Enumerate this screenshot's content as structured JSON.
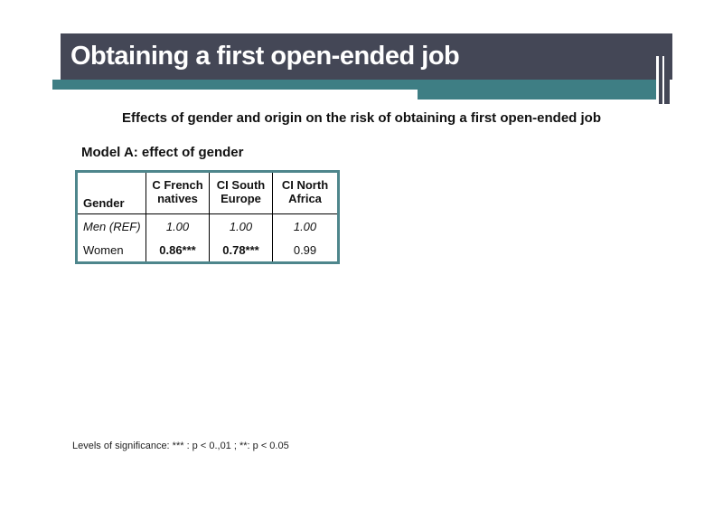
{
  "slide": {
    "title": "Obtaining a first open-ended job",
    "subtitle": "Effects of gender and origin on the risk of obtaining a first open-ended job",
    "model_label": "Model A: effect of gender",
    "footnote": "Levels of significance: *** : p < 0.,01 ; **: p < 0.05"
  },
  "colors": {
    "title_bar_bg": "#444756",
    "accent_teal": "#3e7e84",
    "table_border_teal": "#4e868c",
    "title_text": "#ffffff",
    "body_text": "#111111"
  },
  "table": {
    "columns": [
      "Gender",
      "C French natives",
      "CI South Europe",
      "CI North Africa"
    ],
    "rows": [
      {
        "label": "Men (REF)",
        "values": [
          "1.00",
          "1.00",
          "1.00"
        ]
      },
      {
        "label": "Women",
        "values": [
          "0.86***",
          "0.78***",
          "0.99"
        ]
      }
    ]
  }
}
